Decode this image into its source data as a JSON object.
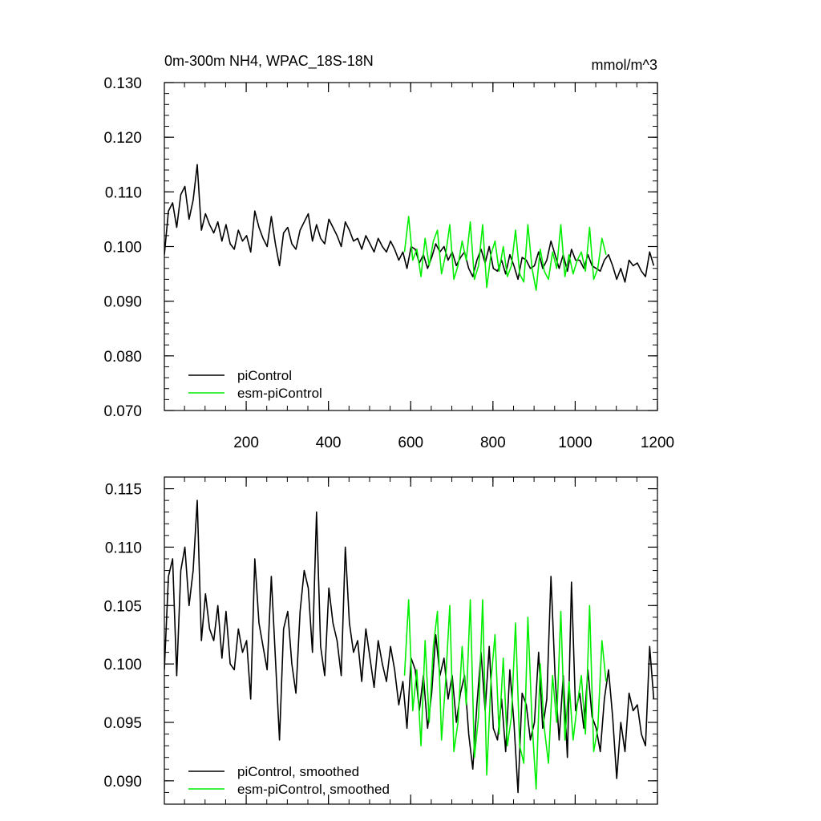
{
  "chart_data": [
    {
      "type": "line",
      "title": "0m-300m NH4, WPAC_18S-18N",
      "units": "mmol/m^3",
      "xlim": [
        1,
        1200
      ],
      "ylim": [
        0.07,
        0.13
      ],
      "x_ticks": [
        "200",
        "400",
        "600",
        "800",
        "1000",
        "1200"
      ],
      "x_tick_values": [
        200,
        400,
        600,
        800,
        1000,
        1200
      ],
      "y_ticks": [
        "0.070",
        "0.080",
        "0.090",
        "0.100",
        "0.110",
        "0.120",
        "0.130"
      ],
      "y_tick_values": [
        0.07,
        0.08,
        0.09,
        0.1,
        0.11,
        0.12,
        0.13
      ],
      "legend_position": "bottom-left",
      "series": [
        {
          "name": "piControl",
          "color": "#000000",
          "x_start": 1,
          "x_step": 10,
          "values": [
            0.0985,
            0.1065,
            0.108,
            0.1035,
            0.1095,
            0.111,
            0.105,
            0.1085,
            0.115,
            0.103,
            0.106,
            0.104,
            0.1025,
            0.1045,
            0.101,
            0.104,
            0.1005,
            0.0995,
            0.103,
            0.101,
            0.102,
            0.099,
            0.1065,
            0.1035,
            0.1015,
            0.1,
            0.1055,
            0.1005,
            0.0965,
            0.1025,
            0.1035,
            0.1005,
            0.0995,
            0.103,
            0.1045,
            0.106,
            0.101,
            0.104,
            0.1015,
            0.1005,
            0.105,
            0.1035,
            0.102,
            0.1,
            0.1045,
            0.103,
            0.101,
            0.1015,
            0.0995,
            0.102,
            0.1005,
            0.099,
            0.1015,
            0.1,
            0.099,
            0.101,
            0.0995,
            0.0975,
            0.099,
            0.096,
            0.1,
            0.0995,
            0.097,
            0.0985,
            0.096,
            0.098,
            0.1005,
            0.099,
            0.1,
            0.0975,
            0.099,
            0.0965,
            0.098,
            0.099,
            0.096,
            0.0945,
            0.0975,
            0.0995,
            0.097,
            0.1,
            0.096,
            0.0955,
            0.0975,
            0.095,
            0.0985,
            0.0965,
            0.094,
            0.098,
            0.0975,
            0.096,
            0.0965,
            0.099,
            0.096,
            0.0975,
            0.101,
            0.0985,
            0.096,
            0.0985,
            0.0955,
            0.0995,
            0.0975,
            0.0975,
            0.096,
            0.0985,
            0.0965,
            0.096,
            0.0955,
            0.0975,
            0.0985,
            0.0965,
            0.094,
            0.096,
            0.0935,
            0.0975,
            0.0965,
            0.097,
            0.0955,
            0.0945,
            0.099,
            0.0965
          ]
        },
        {
          "name": "esm-piControl",
          "color": "#00ee00",
          "x_start": 585,
          "x_step": 10,
          "values": [
            0.099,
            0.1055,
            0.0975,
            0.0995,
            0.0945,
            0.1015,
            0.0965,
            0.101,
            0.103,
            0.095,
            0.0985,
            0.104,
            0.094,
            0.0965,
            0.101,
            0.0975,
            0.1045,
            0.094,
            0.0965,
            0.104,
            0.0925,
            0.0985,
            0.101,
            0.0955,
            0.1,
            0.0945,
            0.0965,
            0.103,
            0.095,
            0.0935,
            0.104,
            0.096,
            0.092,
            0.0995,
            0.0955,
            0.094,
            0.099,
            0.096,
            0.104,
            0.0945,
            0.0985,
            0.095,
            0.0975,
            0.099,
            0.0955,
            0.1035,
            0.094,
            0.096,
            0.1015,
            0.0985
          ]
        }
      ]
    },
    {
      "type": "line",
      "xlim": [
        1,
        1200
      ],
      "ylim": [
        0.088,
        0.116
      ],
      "x_tick_values": [
        200,
        400,
        600,
        800,
        1000,
        1200
      ],
      "y_ticks": [
        "0.090",
        "0.095",
        "0.100",
        "0.105",
        "0.110",
        "0.115"
      ],
      "y_tick_values": [
        0.09,
        0.095,
        0.1,
        0.105,
        0.11,
        0.115
      ],
      "legend_position": "bottom-left",
      "series": [
        {
          "name": "piControl, smoothed",
          "color": "#000000",
          "x_start": 1,
          "x_step": 10,
          "values": [
            0.0995,
            0.1075,
            0.109,
            0.099,
            0.108,
            0.11,
            0.105,
            0.108,
            0.114,
            0.102,
            0.106,
            0.103,
            0.102,
            0.105,
            0.1005,
            0.1045,
            0.1,
            0.0995,
            0.103,
            0.101,
            0.102,
            0.097,
            0.109,
            0.1035,
            0.1015,
            0.0995,
            0.1075,
            0.1005,
            0.0935,
            0.103,
            0.1045,
            0.1,
            0.0975,
            0.1045,
            0.108,
            0.1065,
            0.101,
            0.113,
            0.1015,
            0.099,
            0.1065,
            0.1035,
            0.102,
            0.099,
            0.11,
            0.1035,
            0.101,
            0.102,
            0.0985,
            0.103,
            0.1005,
            0.098,
            0.102,
            0.1,
            0.0985,
            0.1015,
            0.0995,
            0.0965,
            0.0985,
            0.0945,
            0.1005,
            0.0995,
            0.096,
            0.099,
            0.0945,
            0.0975,
            0.1025,
            0.099,
            0.1005,
            0.097,
            0.099,
            0.095,
            0.0975,
            0.099,
            0.094,
            0.091,
            0.0965,
            0.101,
            0.096,
            0.1015,
            0.0945,
            0.0935,
            0.097,
            0.0925,
            0.0995,
            0.095,
            0.089,
            0.0975,
            0.0965,
            0.0935,
            0.095,
            0.101,
            0.0945,
            0.097,
            0.1075,
            0.099,
            0.0935,
            0.099,
            0.092,
            0.107,
            0.096,
            0.0975,
            0.0945,
            0.0995,
            0.0955,
            0.0945,
            0.0925,
            0.097,
            0.0995,
            0.0955,
            0.0902,
            0.095,
            0.0925,
            0.0975,
            0.096,
            0.0965,
            0.094,
            0.093,
            0.1015,
            0.097
          ]
        },
        {
          "name": "esm-piControl, smoothed",
          "color": "#00ee00",
          "x_start": 585,
          "x_step": 10,
          "values": [
            0.099,
            0.1055,
            0.096,
            0.0995,
            0.093,
            0.102,
            0.095,
            0.1015,
            0.1045,
            0.0935,
            0.0985,
            0.105,
            0.0925,
            0.095,
            0.1015,
            0.0965,
            0.1055,
            0.092,
            0.0955,
            0.1055,
            0.0905,
            0.0985,
            0.1025,
            0.094,
            0.1005,
            0.093,
            0.0955,
            0.1035,
            0.093,
            0.0915,
            0.104,
            0.095,
            0.0893,
            0.1,
            0.0945,
            0.0915,
            0.099,
            0.095,
            0.1045,
            0.0935,
            0.0985,
            0.0935,
            0.0965,
            0.099,
            0.094,
            0.105,
            0.0925,
            0.0945,
            0.102,
            0.0985
          ]
        }
      ]
    }
  ]
}
